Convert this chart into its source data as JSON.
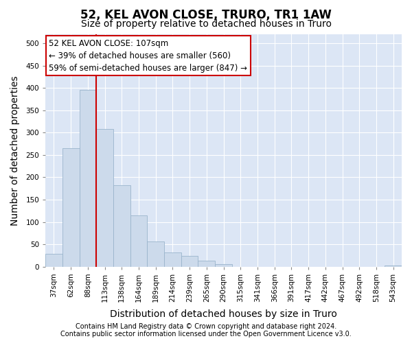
{
  "title": "52, KEL AVON CLOSE, TRURO, TR1 1AW",
  "subtitle": "Size of property relative to detached houses in Truro",
  "xlabel": "Distribution of detached houses by size in Truro",
  "ylabel": "Number of detached properties",
  "footer_line1": "Contains HM Land Registry data © Crown copyright and database right 2024.",
  "footer_line2": "Contains public sector information licensed under the Open Government Licence v3.0.",
  "categories": [
    "37sqm",
    "62sqm",
    "88sqm",
    "113sqm",
    "138sqm",
    "164sqm",
    "189sqm",
    "214sqm",
    "239sqm",
    "265sqm",
    "290sqm",
    "315sqm",
    "341sqm",
    "366sqm",
    "391sqm",
    "417sqm",
    "442sqm",
    "467sqm",
    "492sqm",
    "518sqm",
    "543sqm"
  ],
  "bar_values": [
    28,
    265,
    395,
    308,
    182,
    115,
    57,
    32,
    24,
    13,
    5,
    0,
    0,
    0,
    0,
    0,
    0,
    0,
    0,
    0,
    3
  ],
  "bar_color": "#ccdaeb",
  "bar_edge_color": "#9ab4cc",
  "vline_x": 3.0,
  "vline_color": "#cc0000",
  "annotation_line1": "52 KEL AVON CLOSE: 107sqm",
  "annotation_line2": "← 39% of detached houses are smaller (560)",
  "annotation_line3": "59% of semi-detached houses are larger (847) →",
  "annotation_box_facecolor": "#ffffff",
  "annotation_box_edgecolor": "#cc0000",
  "ylim": [
    0,
    520
  ],
  "yticks": [
    0,
    50,
    100,
    150,
    200,
    250,
    300,
    350,
    400,
    450,
    500
  ],
  "bg_color": "#ffffff",
  "plot_bg_color": "#dce6f5",
  "grid_color": "#ffffff",
  "title_fontsize": 12,
  "subtitle_fontsize": 10,
  "tick_fontsize": 7.5,
  "label_fontsize": 10,
  "footer_fontsize": 7
}
